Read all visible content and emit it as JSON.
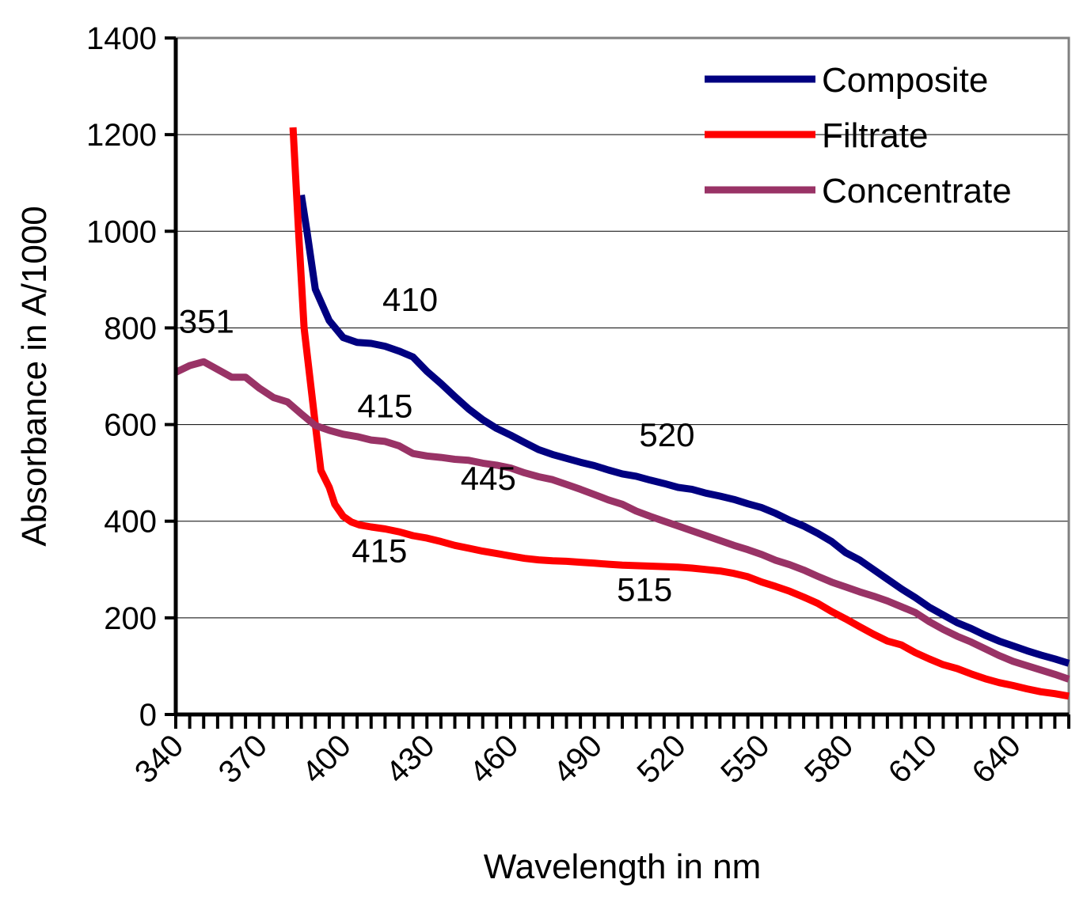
{
  "chart_data": {
    "type": "line",
    "title": "",
    "xlabel": "Wavelength in nm",
    "ylabel": "Absorbance in A/1000",
    "xlim": [
      340,
      660
    ],
    "ylim": [
      0,
      1400
    ],
    "grid": true,
    "legend_position": "top-right",
    "x_tick_labels": [
      "340",
      "370",
      "400",
      "430",
      "460",
      "490",
      "520",
      "550",
      "580",
      "610",
      "640"
    ],
    "x_tick_values": [
      340,
      370,
      400,
      430,
      460,
      490,
      520,
      550,
      580,
      610,
      640
    ],
    "y_ticks": [
      0,
      200,
      400,
      600,
      800,
      1000,
      1200,
      1400
    ],
    "series": [
      {
        "name": "Composite",
        "color": "#000080",
        "points": [
          [
            385,
            1075
          ],
          [
            387,
            1000
          ],
          [
            390,
            880
          ],
          [
            395,
            815
          ],
          [
            400,
            780
          ],
          [
            405,
            770
          ],
          [
            410,
            768
          ],
          [
            415,
            762
          ],
          [
            420,
            752
          ],
          [
            425,
            740
          ],
          [
            430,
            710
          ],
          [
            435,
            685
          ],
          [
            440,
            658
          ],
          [
            445,
            632
          ],
          [
            450,
            610
          ],
          [
            455,
            592
          ],
          [
            460,
            578
          ],
          [
            465,
            563
          ],
          [
            470,
            548
          ],
          [
            475,
            538
          ],
          [
            480,
            530
          ],
          [
            485,
            522
          ],
          [
            490,
            515
          ],
          [
            495,
            506
          ],
          [
            500,
            498
          ],
          [
            505,
            493
          ],
          [
            510,
            485
          ],
          [
            515,
            478
          ],
          [
            520,
            470
          ],
          [
            525,
            466
          ],
          [
            530,
            458
          ],
          [
            535,
            452
          ],
          [
            540,
            445
          ],
          [
            545,
            436
          ],
          [
            550,
            428
          ],
          [
            555,
            416
          ],
          [
            560,
            402
          ],
          [
            565,
            390
          ],
          [
            570,
            375
          ],
          [
            575,
            358
          ],
          [
            580,
            335
          ],
          [
            585,
            320
          ],
          [
            590,
            300
          ],
          [
            595,
            280
          ],
          [
            600,
            260
          ],
          [
            605,
            242
          ],
          [
            610,
            222
          ],
          [
            615,
            206
          ],
          [
            620,
            190
          ],
          [
            625,
            178
          ],
          [
            630,
            164
          ],
          [
            635,
            152
          ],
          [
            640,
            142
          ],
          [
            645,
            132
          ],
          [
            650,
            123
          ],
          [
            655,
            115
          ],
          [
            660,
            106
          ]
        ]
      },
      {
        "name": "Filtrate",
        "color": "#ff0000",
        "points": [
          [
            382,
            1215
          ],
          [
            384,
            1000
          ],
          [
            386,
            800
          ],
          [
            388,
            700
          ],
          [
            390,
            600
          ],
          [
            392,
            505
          ],
          [
            395,
            470
          ],
          [
            397,
            435
          ],
          [
            400,
            410
          ],
          [
            403,
            398
          ],
          [
            406,
            392
          ],
          [
            410,
            388
          ],
          [
            415,
            384
          ],
          [
            420,
            378
          ],
          [
            425,
            370
          ],
          [
            430,
            365
          ],
          [
            435,
            358
          ],
          [
            440,
            350
          ],
          [
            445,
            344
          ],
          [
            450,
            338
          ],
          [
            455,
            333
          ],
          [
            460,
            328
          ],
          [
            465,
            323
          ],
          [
            470,
            320
          ],
          [
            475,
            318
          ],
          [
            480,
            317
          ],
          [
            485,
            315
          ],
          [
            490,
            313
          ],
          [
            495,
            311
          ],
          [
            500,
            309
          ],
          [
            505,
            308
          ],
          [
            510,
            307
          ],
          [
            515,
            306
          ],
          [
            520,
            305
          ],
          [
            525,
            303
          ],
          [
            530,
            300
          ],
          [
            535,
            297
          ],
          [
            540,
            292
          ],
          [
            545,
            285
          ],
          [
            550,
            274
          ],
          [
            555,
            265
          ],
          [
            560,
            255
          ],
          [
            565,
            243
          ],
          [
            570,
            230
          ],
          [
            575,
            213
          ],
          [
            580,
            198
          ],
          [
            585,
            182
          ],
          [
            590,
            166
          ],
          [
            595,
            152
          ],
          [
            600,
            144
          ],
          [
            605,
            128
          ],
          [
            610,
            115
          ],
          [
            615,
            103
          ],
          [
            620,
            95
          ],
          [
            625,
            84
          ],
          [
            630,
            74
          ],
          [
            635,
            66
          ],
          [
            640,
            60
          ],
          [
            645,
            53
          ],
          [
            650,
            47
          ],
          [
            655,
            43
          ],
          [
            660,
            38
          ]
        ]
      },
      {
        "name": "Concentrate",
        "color": "#993366",
        "points": [
          [
            340,
            708
          ],
          [
            345,
            722
          ],
          [
            350,
            730
          ],
          [
            355,
            714
          ],
          [
            360,
            698
          ],
          [
            365,
            698
          ],
          [
            370,
            675
          ],
          [
            375,
            656
          ],
          [
            380,
            647
          ],
          [
            385,
            622
          ],
          [
            390,
            598
          ],
          [
            395,
            588
          ],
          [
            400,
            580
          ],
          [
            405,
            575
          ],
          [
            410,
            568
          ],
          [
            415,
            565
          ],
          [
            420,
            556
          ],
          [
            425,
            540
          ],
          [
            430,
            535
          ],
          [
            435,
            532
          ],
          [
            440,
            528
          ],
          [
            445,
            526
          ],
          [
            450,
            520
          ],
          [
            455,
            516
          ],
          [
            460,
            510
          ],
          [
            465,
            500
          ],
          [
            470,
            492
          ],
          [
            475,
            486
          ],
          [
            480,
            476
          ],
          [
            485,
            466
          ],
          [
            490,
            455
          ],
          [
            495,
            444
          ],
          [
            500,
            435
          ],
          [
            505,
            421
          ],
          [
            510,
            410
          ],
          [
            515,
            400
          ],
          [
            520,
            390
          ],
          [
            525,
            380
          ],
          [
            530,
            370
          ],
          [
            535,
            360
          ],
          [
            540,
            350
          ],
          [
            545,
            341
          ],
          [
            550,
            331
          ],
          [
            555,
            319
          ],
          [
            560,
            310
          ],
          [
            565,
            299
          ],
          [
            570,
            286
          ],
          [
            575,
            274
          ],
          [
            580,
            264
          ],
          [
            585,
            254
          ],
          [
            590,
            245
          ],
          [
            595,
            235
          ],
          [
            600,
            223
          ],
          [
            605,
            211
          ],
          [
            610,
            192
          ],
          [
            615,
            176
          ],
          [
            620,
            162
          ],
          [
            625,
            150
          ],
          [
            630,
            136
          ],
          [
            635,
            122
          ],
          [
            640,
            110
          ],
          [
            645,
            101
          ],
          [
            650,
            92
          ],
          [
            655,
            83
          ],
          [
            660,
            73
          ]
        ]
      }
    ],
    "annotations": [
      {
        "text": "351",
        "x": 351,
        "y": 790
      },
      {
        "text": "410",
        "x": 424,
        "y": 835
      },
      {
        "text": "415",
        "x": 415,
        "y": 615
      },
      {
        "text": "520",
        "x": 516,
        "y": 555
      },
      {
        "text": "445",
        "x": 452,
        "y": 465
      },
      {
        "text": "415",
        "x": 413,
        "y": 315
      },
      {
        "text": "515",
        "x": 508,
        "y": 235
      }
    ]
  }
}
